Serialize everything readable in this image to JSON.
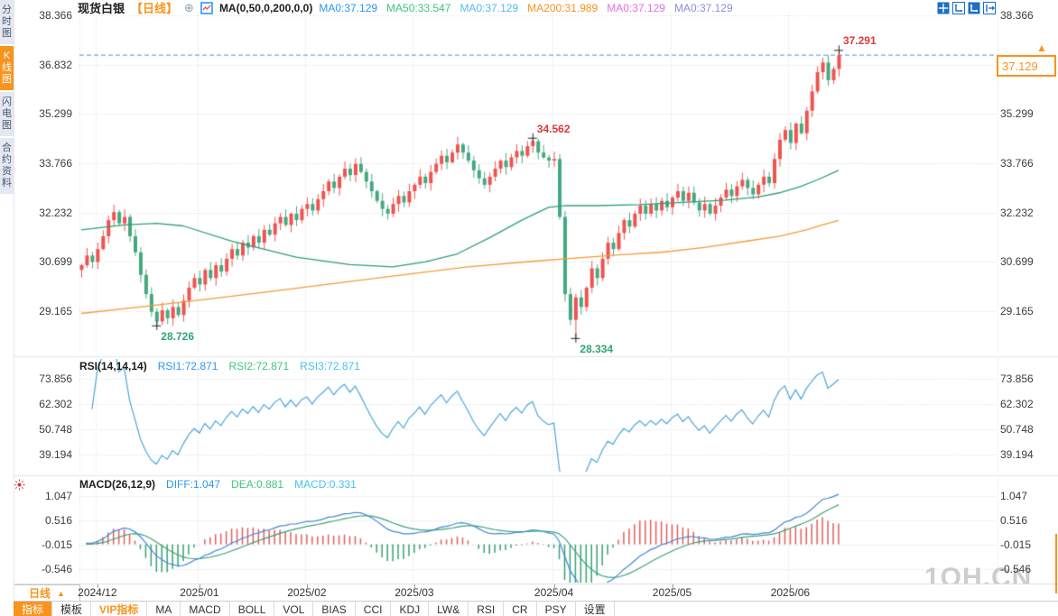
{
  "sidebar": {
    "tabs": [
      {
        "label": "分时图",
        "active": false
      },
      {
        "label": "K线图",
        "active": true
      },
      {
        "label": "闪电图",
        "active": false
      },
      {
        "label": "合约资料",
        "active": false
      }
    ]
  },
  "header": {
    "symbol": "现货白银",
    "period_tag": "【日线】",
    "add_icon": "⊕",
    "ma_title": "MA(0,50,0,200,0,0)",
    "ma_values": [
      {
        "text": "MA0:37.129",
        "color": "#2b97f3"
      },
      {
        "text": "MA50:33.547",
        "color": "#3ec57f"
      },
      {
        "text": "MA0:37.129",
        "color": "#55b9f5"
      },
      {
        "text": "MA200:31.989",
        "color": "#f7931e"
      },
      {
        "text": "MA0:37.129",
        "color": "#e570db"
      },
      {
        "text": "MA0:37.129",
        "color": "#8d8ce2"
      }
    ],
    "window_icons": [
      "pan-move-icon",
      "axis-scale-icon",
      "axis-scale-active-icon",
      "collapse-panel-icon"
    ]
  },
  "price_marker": {
    "label": "37.129",
    "arrow": "▲"
  },
  "rsi_panel": {
    "title": "RSI(14,14,14)",
    "values": [
      {
        "text": "RSI1:72.871",
        "color": "#2b97f3"
      },
      {
        "text": "RSI2:72.871",
        "color": "#3ec57f"
      },
      {
        "text": "RSI3:72.871",
        "color": "#49c1f0"
      }
    ]
  },
  "macd_panel": {
    "title": "MACD(26,12,9)",
    "values": [
      {
        "text": "DIFF:1.047",
        "color": "#2b97f3"
      },
      {
        "text": "DEA:0.881",
        "color": "#3ec57f"
      },
      {
        "text": "MACD:0.331",
        "color": "#49c1f0"
      }
    ]
  },
  "x_axis": {
    "period_label": "日线"
  },
  "toolbar": {
    "tabs": [
      {
        "label": "指标",
        "state": "active"
      },
      {
        "label": "模板",
        "state": "normal"
      },
      {
        "label": "VIP指标",
        "state": "vip"
      },
      {
        "label": "MA",
        "state": "normal"
      },
      {
        "label": "MACD",
        "state": "normal"
      },
      {
        "label": "BOLL",
        "state": "normal"
      },
      {
        "label": "VOL",
        "state": "normal"
      },
      {
        "label": "BIAS",
        "state": "normal"
      },
      {
        "label": "CCI",
        "state": "normal"
      },
      {
        "label": "KDJ",
        "state": "normal"
      },
      {
        "label": "LW&",
        "state": "normal"
      },
      {
        "label": "RSI",
        "state": "normal"
      },
      {
        "label": "CR",
        "state": "normal"
      },
      {
        "label": "PSY",
        "state": "normal"
      },
      {
        "label": "设置",
        "state": "normal"
      }
    ]
  },
  "watermark": "1QH.CN",
  "chart_data": {
    "type": "candlestick",
    "title": "现货白银 日线",
    "x_tick_labels": [
      "2024/12",
      "2025/01",
      "2025/02",
      "2025/03",
      "2025/04",
      "2025/05",
      "2025/06"
    ],
    "x_tick_indices": [
      3,
      22,
      42,
      62,
      88,
      110,
      132
    ],
    "price_ticks": [
      38.366,
      36.832,
      35.299,
      33.766,
      32.232,
      30.699,
      29.165
    ],
    "last_price": 37.129,
    "first_open": 30.45,
    "closes": [
      30.6,
      30.9,
      30.7,
      31.1,
      31.5,
      32.0,
      32.25,
      31.9,
      32.1,
      31.5,
      31.0,
      30.3,
      29.7,
      29.15,
      28.85,
      29.2,
      28.95,
      29.3,
      29.05,
      29.5,
      29.9,
      30.2,
      30.0,
      30.45,
      30.2,
      30.6,
      30.4,
      30.8,
      31.1,
      30.9,
      31.3,
      31.15,
      31.5,
      31.3,
      31.7,
      31.55,
      31.9,
      32.1,
      31.85,
      32.2,
      32.0,
      32.35,
      32.5,
      32.3,
      32.65,
      32.9,
      33.2,
      33.0,
      33.35,
      33.6,
      33.4,
      33.75,
      33.5,
      33.2,
      32.9,
      32.6,
      32.35,
      32.2,
      32.5,
      32.75,
      32.55,
      32.9,
      33.1,
      33.35,
      33.15,
      33.5,
      33.75,
      34.0,
      33.8,
      34.1,
      34.35,
      34.1,
      33.85,
      33.55,
      33.3,
      33.1,
      33.35,
      33.6,
      33.85,
      33.65,
      33.95,
      34.15,
      34.0,
      34.3,
      34.45,
      34.1,
      33.95,
      33.85,
      33.9,
      32.1,
      29.7,
      28.9,
      29.6,
      29.3,
      29.9,
      30.5,
      30.2,
      30.8,
      31.3,
      31.1,
      31.6,
      32.0,
      31.8,
      32.2,
      32.45,
      32.2,
      32.5,
      32.3,
      32.6,
      32.4,
      32.7,
      32.9,
      32.6,
      32.85,
      32.55,
      32.3,
      32.5,
      32.2,
      32.45,
      32.7,
      32.95,
      32.75,
      33.05,
      33.25,
      33.0,
      32.8,
      33.1,
      33.35,
      33.15,
      33.9,
      34.5,
      34.8,
      34.4,
      35.0,
      34.7,
      35.4,
      36.0,
      36.6,
      36.9,
      36.35,
      36.7,
      37.129
    ],
    "wick_overrides": {
      "14": {
        "low": 28.726
      },
      "84": {
        "high": 34.562
      },
      "92": {
        "low": 28.334
      },
      "141": {
        "high": 37.291
      }
    },
    "ma50": [
      [
        0,
        31.7
      ],
      [
        8,
        31.85
      ],
      [
        14,
        31.9
      ],
      [
        19,
        31.82
      ],
      [
        28,
        31.35
      ],
      [
        40,
        30.85
      ],
      [
        50,
        30.62
      ],
      [
        58,
        30.55
      ],
      [
        64,
        30.7
      ],
      [
        70,
        30.95
      ],
      [
        76,
        31.45
      ],
      [
        82,
        32.0
      ],
      [
        87,
        32.4
      ],
      [
        90,
        32.45
      ],
      [
        96,
        32.45
      ],
      [
        104,
        32.48
      ],
      [
        112,
        32.55
      ],
      [
        120,
        32.62
      ],
      [
        126,
        32.72
      ],
      [
        130,
        32.85
      ],
      [
        134,
        33.05
      ],
      [
        137,
        33.25
      ],
      [
        141,
        33.547
      ]
    ],
    "ma200": [
      [
        0,
        29.1
      ],
      [
        12,
        29.32
      ],
      [
        24,
        29.55
      ],
      [
        36,
        29.8
      ],
      [
        48,
        30.05
      ],
      [
        60,
        30.3
      ],
      [
        72,
        30.55
      ],
      [
        84,
        30.72
      ],
      [
        92,
        30.82
      ],
      [
        100,
        30.92
      ],
      [
        108,
        31.0
      ],
      [
        116,
        31.15
      ],
      [
        124,
        31.35
      ],
      [
        130,
        31.5
      ],
      [
        135,
        31.7
      ],
      [
        138,
        31.85
      ],
      [
        141,
        31.989
      ]
    ],
    "rsi": {
      "period": 14,
      "ticks": [
        73.856,
        62.302,
        50.748,
        39.194
      ],
      "last_values": [
        72.871,
        72.871,
        72.871
      ]
    },
    "macd": {
      "fast": 12,
      "slow": 26,
      "signal": 9,
      "ticks": [
        1.047,
        0.516,
        -0.015,
        -0.546
      ],
      "last_diff": 1.047,
      "last_dea": 0.881,
      "last_hist": 0.331
    },
    "annotations": [
      {
        "text": "37.291",
        "index": 141,
        "value": 37.291,
        "placement": "above",
        "color": "#d93a3a"
      },
      {
        "text": "34.562",
        "index": 84,
        "value": 34.562,
        "placement": "above",
        "color": "#d93a3a"
      },
      {
        "text": "28.726",
        "index": 14,
        "value": 28.726,
        "placement": "below",
        "color": "#2fa573"
      },
      {
        "text": "28.334",
        "index": 92,
        "value": 28.334,
        "placement": "below",
        "color": "#2fa573"
      }
    ],
    "colors": {
      "up": "#ef5350",
      "down": "#45a87f",
      "ma50": "#2f9e77",
      "ma200": "#f39b3a",
      "rsi_line": "#4aa5dd",
      "diff": "#3f87d9",
      "dea": "#3aa378",
      "hist_pos": "#e25d5d",
      "hist_neg": "#39a071",
      "grid": "#d8d8d8",
      "price_line": "#4a90e2",
      "accent": "#f7941d"
    }
  }
}
